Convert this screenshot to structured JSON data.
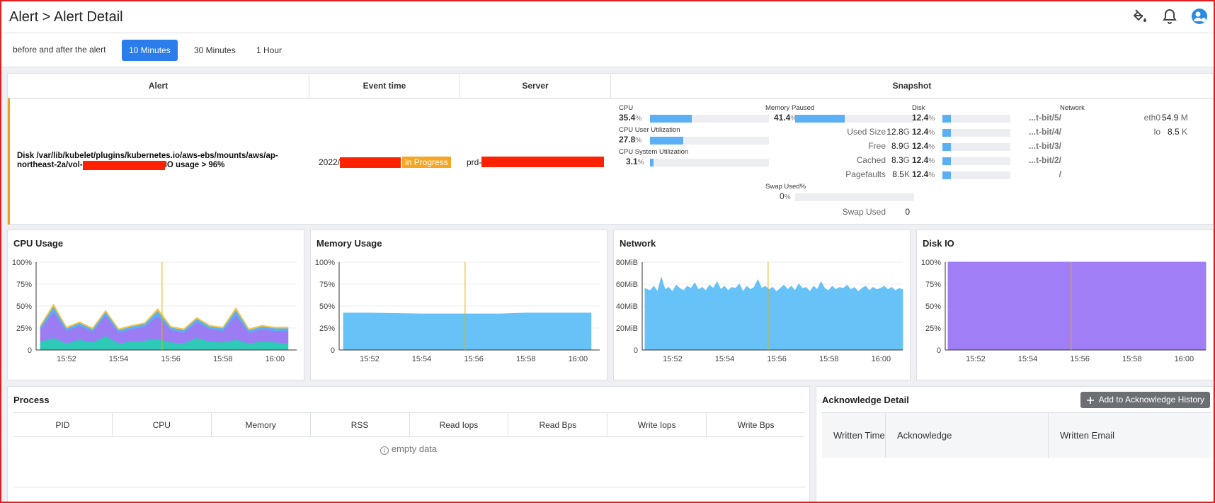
{
  "header": {
    "title": "Alert > Alert Detail"
  },
  "range": {
    "label": "before and after the alert",
    "options": [
      "10 Minutes",
      "30 Minutes",
      "1 Hour"
    ],
    "selected": "10 Minutes"
  },
  "alert": {
    "headers": {
      "alert": "Alert",
      "event_time": "Event time",
      "server": "Server",
      "snapshot": "Snapshot"
    },
    "text_line1": "Disk /var/lib/kubelet/plugins/kubernetes.io/aws-ebs/mounts/aws/ap-",
    "text_line2_a": "northeast-2a/vol-",
    "text_line2_b": "IO usage > 96%",
    "event_time_prefix": "2022/",
    "status": "in Progress",
    "server_prefix": "prd-"
  },
  "snapshot": {
    "cpu": {
      "label": "CPU",
      "value": "35.4",
      "unit": "%",
      "fill": 0.354
    },
    "cpu_user": {
      "label": "CPU User Utilization",
      "value": "27.8",
      "unit": "%",
      "fill": 0.278
    },
    "cpu_system": {
      "label": "CPU System Utilization",
      "value": "3.1",
      "unit": "%",
      "fill": 0.031
    },
    "memory": {
      "label": "Memory Paused",
      "value": "41.4",
      "unit": "%",
      "fill": 0.414
    },
    "memory_rows": [
      {
        "label": "Used Size",
        "value": "12.8",
        "unit": "G"
      },
      {
        "label": "Free",
        "value": "8.9",
        "unit": "G"
      },
      {
        "label": "Cached",
        "value": "8.3",
        "unit": "G"
      },
      {
        "label": "Pagefaults",
        "value": "8.5",
        "unit": "K"
      }
    ],
    "swap": {
      "label": "Swap Used%",
      "value": "0",
      "unit": "%",
      "fill": 0
    },
    "swap_used": {
      "label": "Swap Used",
      "value": "0"
    },
    "disk": {
      "label": "Disk",
      "rows": [
        {
          "value": "12.4",
          "unit": "%",
          "fill": 0.124,
          "path": "...t-bit/5/"
        },
        {
          "value": "12.4",
          "unit": "%",
          "fill": 0.124,
          "path": "...t-bit/4/"
        },
        {
          "value": "12.4",
          "unit": "%",
          "fill": 0.124,
          "path": "...t-bit/3/"
        },
        {
          "value": "12.4",
          "unit": "%",
          "fill": 0.124,
          "path": "...t-bit/2/"
        },
        {
          "value": "12.4",
          "unit": "%",
          "fill": 0.124,
          "path": "/"
        }
      ]
    },
    "network": {
      "label": "Network",
      "rows": [
        {
          "name": "eth0",
          "value": "54.9",
          "unit": "M"
        },
        {
          "name": "lo",
          "value": "8.5",
          "unit": "K"
        }
      ]
    }
  },
  "charts": {
    "cpu": {
      "title": "CPU Usage"
    },
    "memory": {
      "title": "Memory Usage"
    },
    "network": {
      "title": "Network"
    },
    "disk": {
      "title": "Disk IO"
    }
  },
  "chart_data": [
    {
      "type": "area",
      "title": "CPU Usage",
      "x": [
        "15:51",
        "15:51:30",
        "15:52",
        "15:52:30",
        "15:53",
        "15:53:30",
        "15:54",
        "15:54:30",
        "15:55",
        "15:55:30",
        "15:56",
        "15:56:30",
        "15:57",
        "15:57:30",
        "15:58",
        "15:58:30",
        "15:59",
        "15:59:30",
        "16:00",
        "16:00:30"
      ],
      "x_ticks": [
        "15:52",
        "15:54",
        "15:56",
        "15:58",
        "16:00"
      ],
      "y_ticks": [
        "0",
        "25%",
        "50%",
        "75%",
        "100%"
      ],
      "ylim": [
        0,
        100
      ],
      "alert_marker": "15:55:40",
      "series": [
        {
          "color": "#2ec9b7",
          "values": [
            10,
            14,
            8,
            12,
            9,
            16,
            8,
            10,
            11,
            13,
            9,
            8,
            14,
            10,
            9,
            12,
            8,
            10,
            9,
            8
          ]
        },
        {
          "color": "#9b7cf3",
          "values": [
            14,
            30,
            14,
            16,
            12,
            24,
            12,
            14,
            16,
            26,
            14,
            12,
            18,
            14,
            13,
            28,
            12,
            14,
            13,
            14
          ]
        },
        {
          "color": "#5aaff5",
          "values": [
            3,
            6,
            3,
            3,
            3,
            4,
            3,
            3,
            3,
            6,
            3,
            3,
            4,
            3,
            3,
            6,
            3,
            3,
            3,
            3
          ]
        },
        {
          "color": "#f5c542",
          "values": [
            1,
            2,
            1,
            1,
            1,
            1,
            1,
            1,
            1,
            2,
            1,
            1,
            1,
            1,
            1,
            2,
            1,
            1,
            1,
            1
          ]
        }
      ]
    },
    {
      "type": "area",
      "title": "Memory Usage",
      "x": [
        "15:51",
        "15:52",
        "15:53",
        "15:54",
        "15:55",
        "15:56",
        "15:57",
        "15:58",
        "15:59",
        "16:00",
        "16:00:30"
      ],
      "x_ticks": [
        "15:52",
        "15:54",
        "15:56",
        "15:58",
        "16:00"
      ],
      "y_ticks": [
        "0",
        "25%",
        "50%",
        "75%",
        "100%"
      ],
      "ylim": [
        0,
        100
      ],
      "alert_marker": "15:55:40",
      "series": [
        {
          "color": "#67c2f7",
          "values": [
            42,
            42,
            41.5,
            41,
            41,
            41,
            41,
            42,
            42,
            42,
            42
          ]
        }
      ]
    },
    {
      "type": "area",
      "title": "Network",
      "x_ticks": [
        "15:52",
        "15:54",
        "15:56",
        "15:58",
        "16:00"
      ],
      "y_ticks": [
        "0",
        "20MiB",
        "40MiB",
        "60MiB",
        "80MiB"
      ],
      "ylim": [
        0,
        80
      ],
      "alert_marker": "15:55:40",
      "series": [
        {
          "color": "#67c2f7",
          "values": [
            56,
            54,
            58,
            53,
            66,
            55,
            57,
            53,
            59,
            56,
            54,
            58,
            56,
            61,
            55,
            57,
            54,
            59,
            56,
            62,
            55,
            58,
            54,
            57,
            56,
            60,
            53,
            58,
            55,
            57,
            64,
            56,
            58,
            55,
            57,
            53,
            56,
            59,
            55,
            58,
            54,
            60,
            56,
            57,
            53,
            58,
            55,
            62,
            56,
            54,
            58,
            55,
            57,
            56,
            59,
            55,
            57,
            53,
            56,
            58,
            54,
            57,
            55,
            56,
            58,
            55,
            57,
            54,
            56,
            55
          ]
        }
      ]
    },
    {
      "type": "area",
      "title": "Disk IO",
      "x_ticks": [
        "15:52",
        "15:54",
        "15:56",
        "15:58",
        "16:00"
      ],
      "y_ticks": [
        "0",
        "25%",
        "50%",
        "75%",
        "100%"
      ],
      "ylim": [
        0,
        100
      ],
      "alert_marker": "15:55:40",
      "series": [
        {
          "color": "#a07ef5",
          "values": [
            100,
            100,
            100,
            100,
            100,
            100,
            100,
            100,
            100,
            100
          ]
        }
      ]
    }
  ],
  "process": {
    "title": "Process",
    "columns": [
      "PID",
      "CPU",
      "Memory",
      "RSS",
      "Read Iops",
      "Read Bps",
      "Write Iops",
      "Write Bps"
    ],
    "empty_text": "empty data"
  },
  "acknowledge": {
    "title": "Acknowledge Detail",
    "add_button": "Add to Acknowledge History",
    "columns": [
      "Written Time",
      "Acknowledge",
      "Written Email"
    ]
  }
}
